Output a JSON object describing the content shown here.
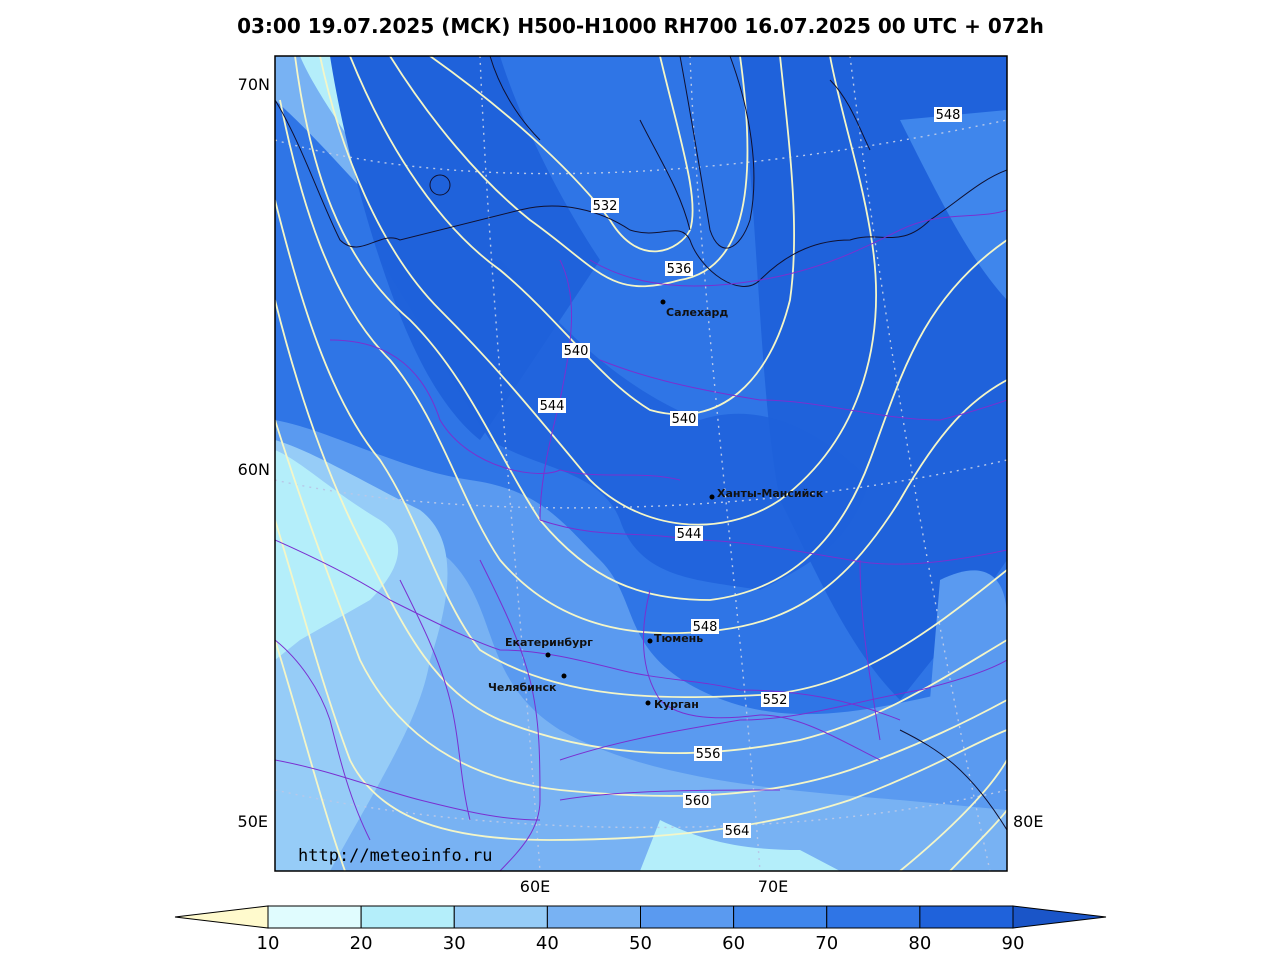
{
  "title": "03:00 19.07.2025 (МСК) H500-H1000 RH700 16.07.2025 00 UTC + 072h",
  "watermark": "http://meteoinfo.ru",
  "axes": {
    "lat_labels": [
      "70N",
      "60N",
      "50E"
    ],
    "lon_labels": [
      "60E",
      "70E",
      "80E"
    ]
  },
  "contours": [
    {
      "label": "532"
    },
    {
      "label": "536"
    },
    {
      "label": "540"
    },
    {
      "label": "540"
    },
    {
      "label": "544"
    },
    {
      "label": "544"
    },
    {
      "label": "548"
    },
    {
      "label": "548"
    },
    {
      "label": "552"
    },
    {
      "label": "556"
    },
    {
      "label": "560"
    },
    {
      "label": "564"
    }
  ],
  "cities": [
    {
      "name": "Салехард"
    },
    {
      "name": "Ханты-Мансийск"
    },
    {
      "name": "Екатеринбург"
    },
    {
      "name": "Тюмень"
    },
    {
      "name": "Челябинск"
    },
    {
      "name": "Курган"
    }
  ],
  "colorbar": {
    "ticks": [
      "10",
      "20",
      "30",
      "40",
      "50",
      "60",
      "70",
      "80",
      "90"
    ],
    "colors": [
      "#fffacd",
      "#e0fcfe",
      "#b4eefa",
      "#96ccf7",
      "#78b2f3",
      "#5a9af0",
      "#3f86ec",
      "#2f75e6",
      "#1f62db",
      "#1a55c8"
    ]
  }
}
